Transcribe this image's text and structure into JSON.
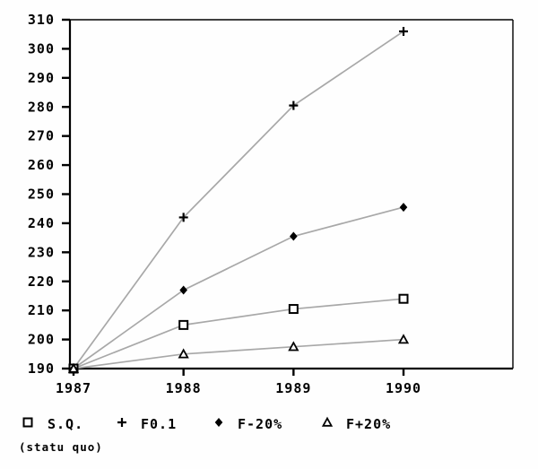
{
  "chart_data": {
    "type": "line",
    "title": "",
    "xlabel": "",
    "ylabel": "",
    "x": [
      1987,
      1988,
      1989,
      1990
    ],
    "x_tick_labels": [
      "1987",
      "1988",
      "1989",
      "1990"
    ],
    "ylim": [
      190,
      310
    ],
    "ytick_step": 10,
    "grid": false,
    "legend_position": "bottom",
    "series": [
      {
        "name": "S.Q.",
        "marker": "square",
        "values": [
          190,
          205,
          210.5,
          214
        ]
      },
      {
        "name": "F0.1",
        "marker": "plus",
        "values": [
          190,
          242,
          280.5,
          306
        ]
      },
      {
        "name": "F-20%",
        "marker": "diamond",
        "values": [
          190,
          217,
          235.5,
          245.5
        ]
      },
      {
        "name": "F+20%",
        "marker": "triangle",
        "values": [
          190,
          195,
          197.5,
          200
        ]
      }
    ],
    "colors": {
      "line": "#a8a8a8",
      "marker": "#000000",
      "axis": "#000000",
      "text": "#000000",
      "background": "#fefefe"
    }
  },
  "legend": {
    "items": [
      {
        "marker": "square",
        "label": "S.Q."
      },
      {
        "marker": "plus",
        "label": "F0.1"
      },
      {
        "marker": "diamond",
        "label": "F-20%"
      },
      {
        "marker": "triangle",
        "label": "F+20%"
      }
    ],
    "footnote": "(statu quo)"
  }
}
